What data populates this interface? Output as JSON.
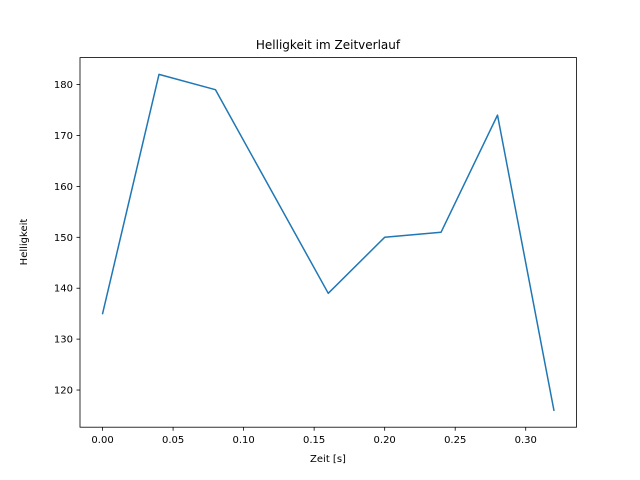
{
  "chart_data": {
    "type": "line",
    "title": "Helligkeit im Zeitverlauf",
    "xlabel": "Zeit [s]",
    "ylabel": "Helligkeit",
    "x": [
      0.0,
      0.04,
      0.08,
      0.16,
      0.2,
      0.24,
      0.28,
      0.32
    ],
    "y": [
      135,
      182,
      179,
      139,
      150,
      151,
      174,
      116
    ],
    "xlim": [
      -0.016,
      0.336
    ],
    "ylim": [
      112.7,
      185.3
    ],
    "xticks": [
      0.0,
      0.05,
      0.1,
      0.15,
      0.2,
      0.25,
      0.3
    ],
    "xtick_labels": [
      "0.00",
      "0.05",
      "0.10",
      "0.15",
      "0.20",
      "0.25",
      "0.30"
    ],
    "yticks": [
      120,
      130,
      140,
      150,
      160,
      170,
      180
    ],
    "ytick_labels": [
      "120",
      "130",
      "140",
      "150",
      "160",
      "170",
      "180"
    ],
    "line_color": "#1f77b4",
    "axis_color": "#000000",
    "grid": false,
    "legend_position": "none"
  }
}
